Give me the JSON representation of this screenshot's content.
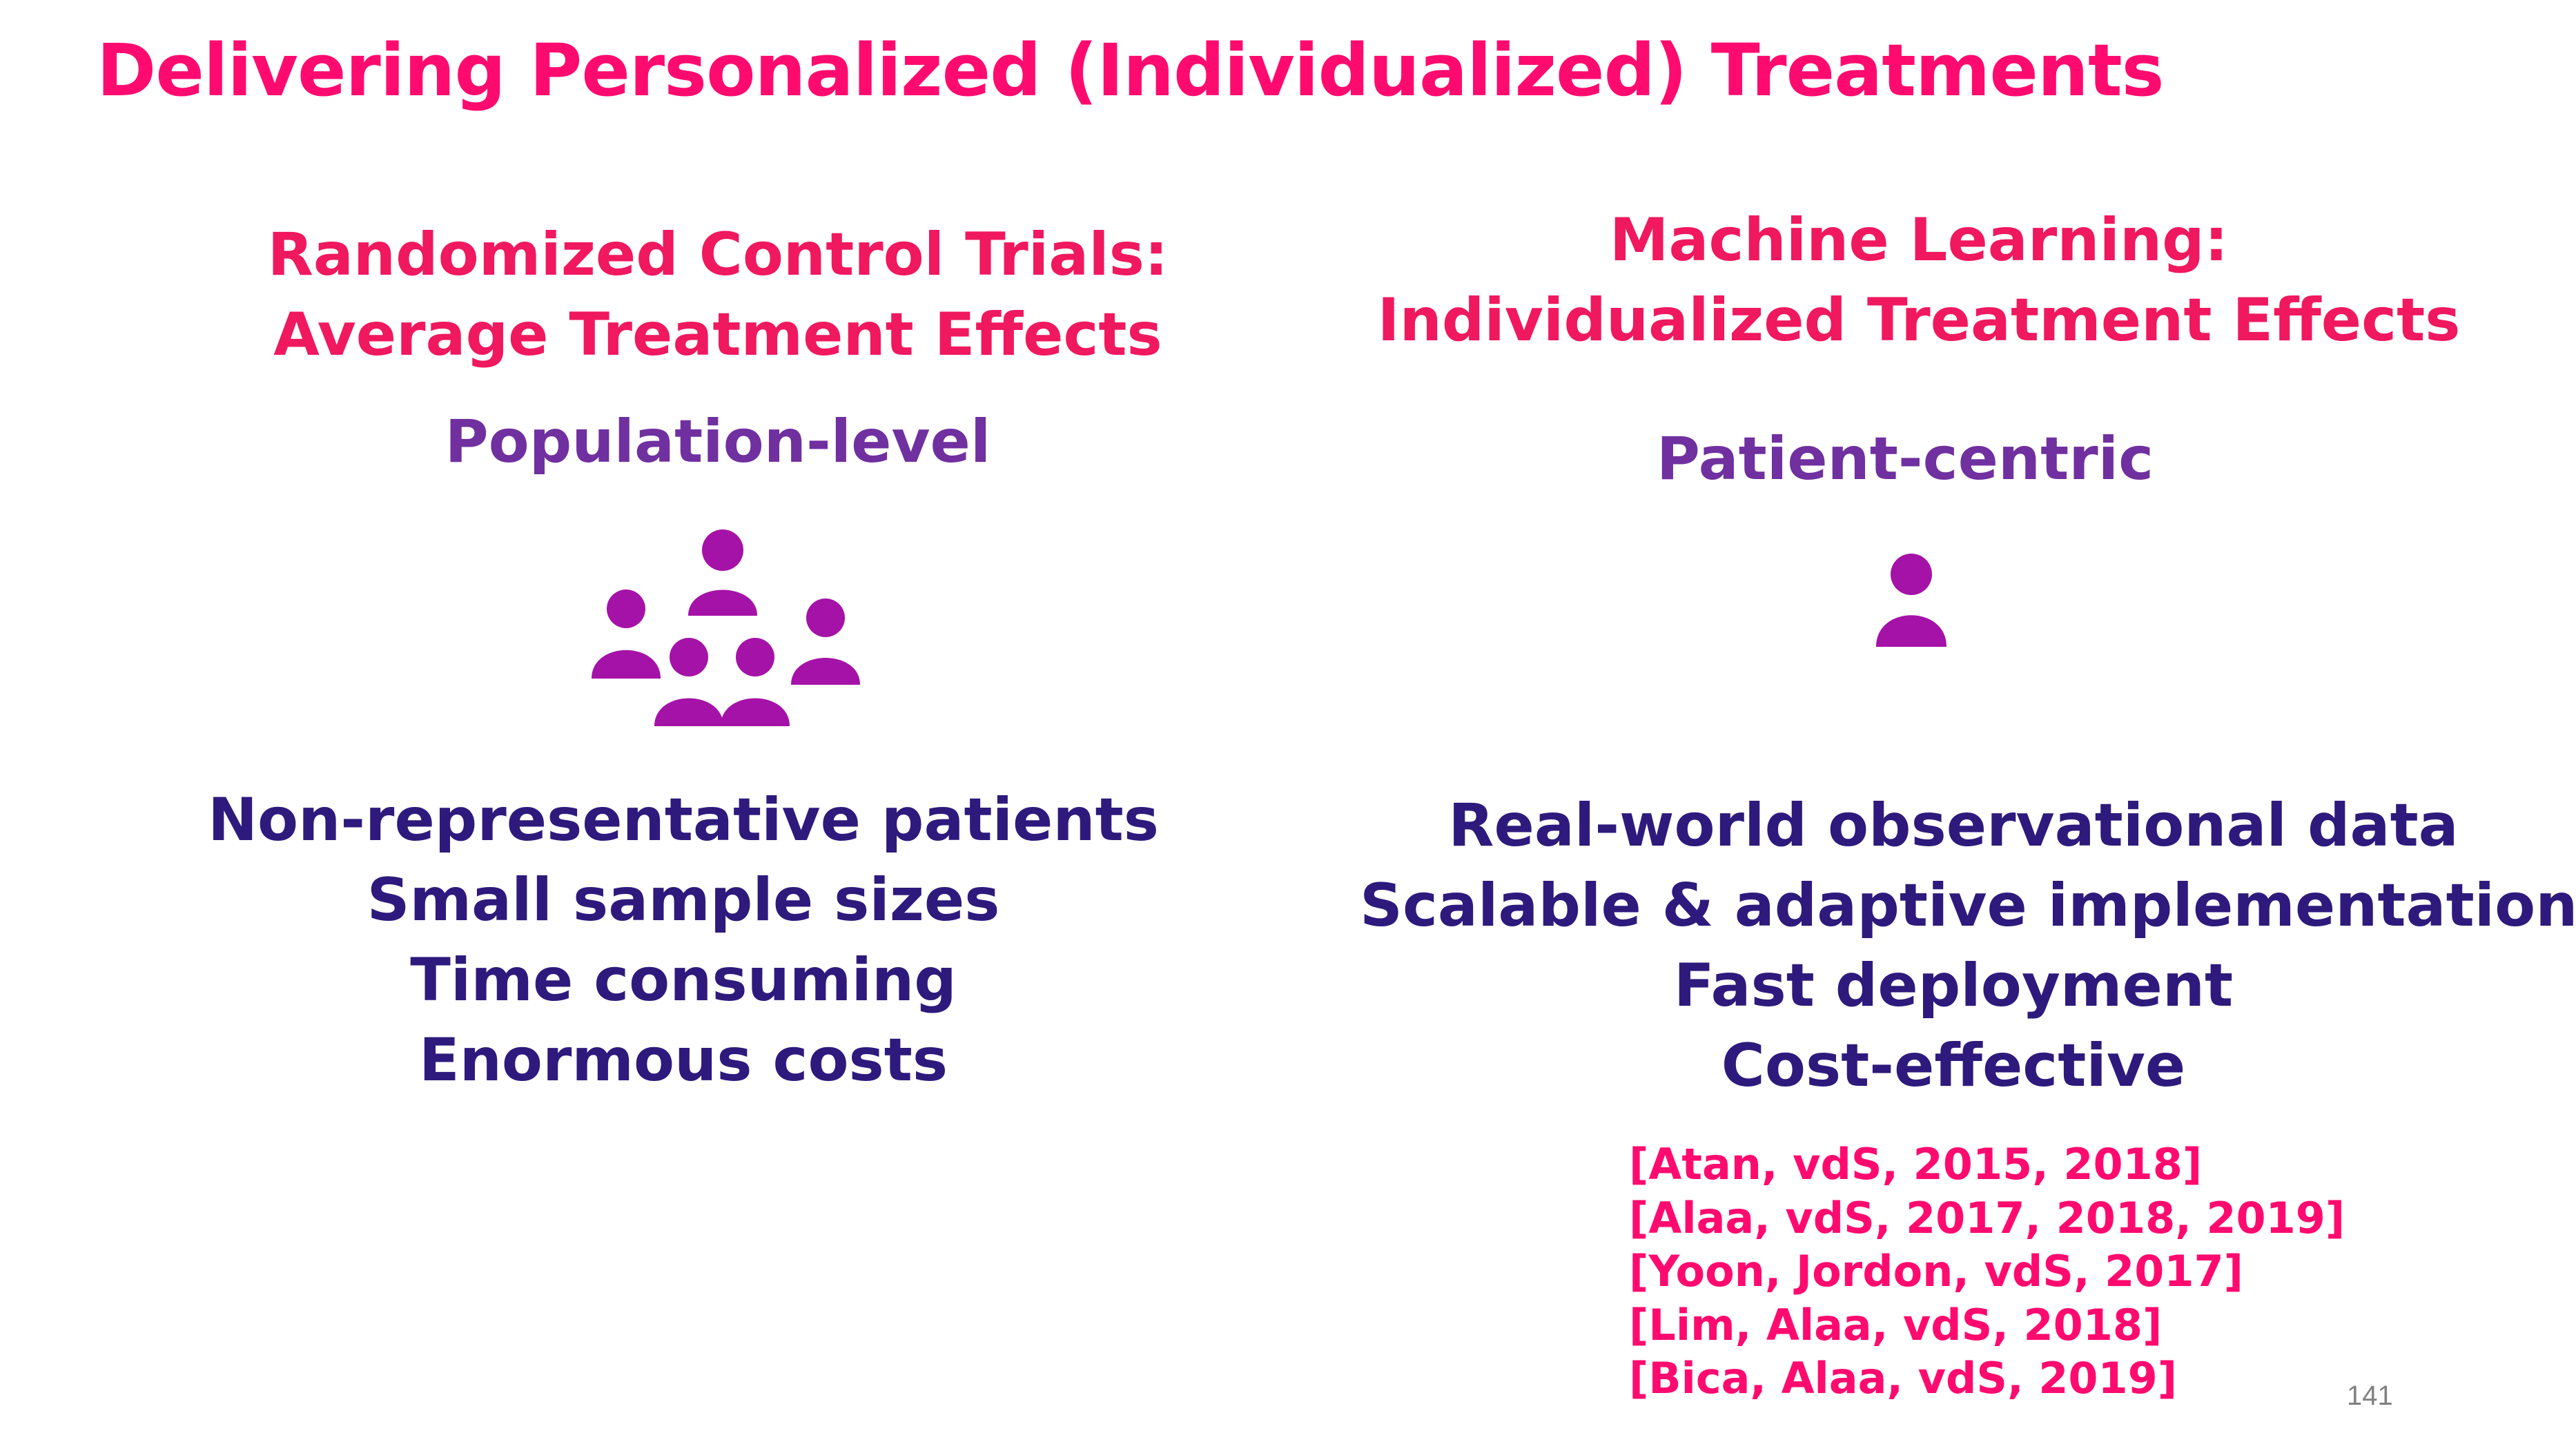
{
  "slide": {
    "title": "Delivering Personalized (Individualized) Treatments",
    "page_number": "141"
  },
  "left": {
    "heading_line1": "Randomized Control Trials:",
    "heading_line2": "Average Treatment Effects",
    "subheading": "Population-level",
    "icon": "group-of-people-icon",
    "points": [
      "Non-representative patients",
      "Small sample sizes",
      "Time consuming",
      "Enormous costs"
    ]
  },
  "right": {
    "heading_line1": "Machine Learning:",
    "heading_line2": "Individualized Treatment Effects",
    "subheading": "Patient-centric",
    "icon": "single-person-icon",
    "points": [
      "Real-world observational data",
      "Scalable & adaptive implementation",
      "Fast deployment",
      "Cost-effective"
    ],
    "references": [
      "[Atan, vdS, 2015, 2018]",
      "[Alaa, vdS, 2017, 2018, 2019]",
      "[Yoon, Jordon, vdS,  2017]",
      "[Lim, Alaa, vdS, 2018]",
      "[Bica, Alaa, vdS, 2019]"
    ]
  },
  "colors": {
    "title": "#ff0b6f",
    "heading": "#f0185f",
    "subheading": "#7030a0",
    "points": "#2e1a7c",
    "icon": "#a512a7",
    "page_number": "#808080"
  }
}
